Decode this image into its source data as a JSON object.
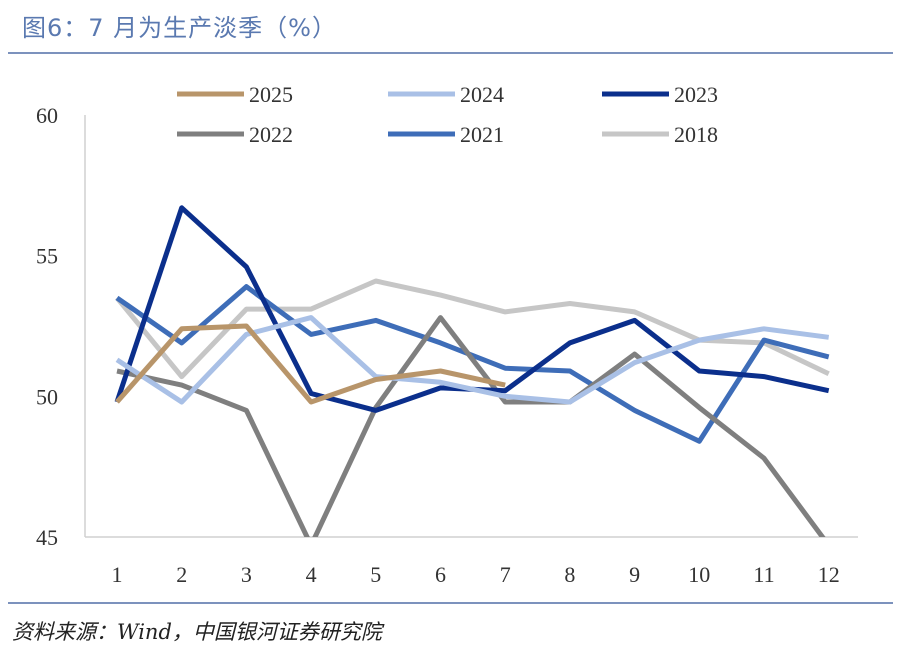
{
  "title": "图6：7 月为生产淡季（%）",
  "source": "资料来源：Wind，中国银河证券研究院",
  "chart_data": {
    "type": "line",
    "x": [
      "1",
      "2",
      "3",
      "4",
      "5",
      "6",
      "7",
      "8",
      "9",
      "10",
      "11",
      "12"
    ],
    "ylim": [
      45,
      60
    ],
    "yticks": [
      45,
      50,
      55,
      60
    ],
    "grid": false,
    "legend_position": "top",
    "series": [
      {
        "name": "2025",
        "color": "#b8956a",
        "values": [
          49.8,
          52.4,
          52.5,
          49.8,
          50.6,
          50.9,
          50.4,
          null,
          null,
          null,
          null,
          null
        ]
      },
      {
        "name": "2024",
        "color": "#a9c0e6",
        "values": [
          51.3,
          49.8,
          52.2,
          52.8,
          50.7,
          50.5,
          50.0,
          49.8,
          51.2,
          52.0,
          52.4,
          52.1
        ]
      },
      {
        "name": "2023",
        "color": "#0b2f8c",
        "values": [
          49.8,
          56.7,
          54.6,
          50.1,
          49.5,
          50.3,
          50.2,
          51.9,
          52.7,
          50.9,
          50.7,
          50.2
        ]
      },
      {
        "name": "2022",
        "color": "#7f7f7f",
        "values": [
          50.9,
          50.4,
          49.5,
          44.7,
          49.6,
          52.8,
          49.8,
          49.8,
          51.5,
          49.6,
          47.8,
          44.7
        ]
      },
      {
        "name": "2021",
        "color": "#3e6db8",
        "values": [
          53.5,
          51.9,
          53.9,
          52.2,
          52.7,
          51.9,
          51.0,
          50.9,
          49.5,
          48.4,
          52.0,
          51.4
        ]
      },
      {
        "name": "2018",
        "color": "#c6c6c6",
        "values": [
          53.5,
          50.7,
          53.1,
          53.1,
          54.1,
          53.6,
          53.0,
          53.3,
          53.0,
          52.0,
          51.9,
          50.8
        ]
      }
    ]
  }
}
